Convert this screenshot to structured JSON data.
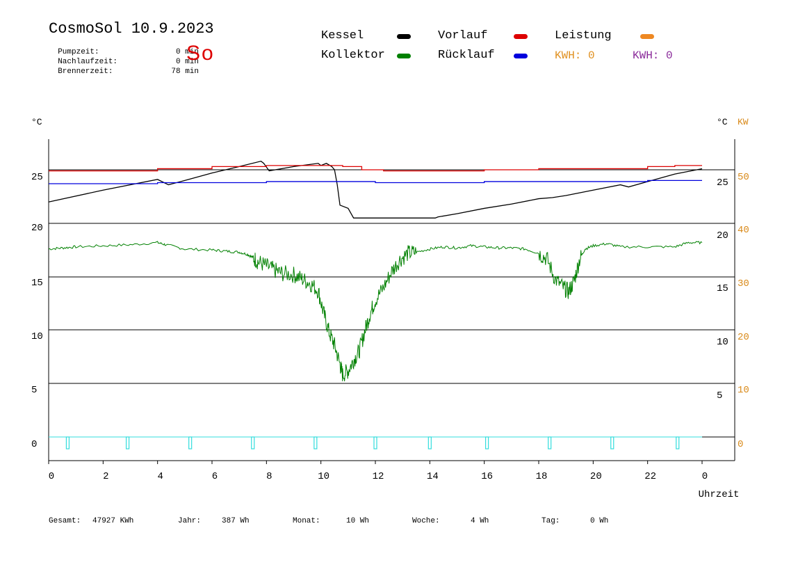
{
  "header": {
    "title": "CosmoSol 10.9.2023",
    "day": "So",
    "info": [
      {
        "label": "Pumpzeit:",
        "value": "0 min"
      },
      {
        "label": "Nachlaufzeit:",
        "value": "0 min"
      },
      {
        "label": "Brennerzeit:",
        "value": "78 min"
      }
    ]
  },
  "legend": {
    "kessel": "Kessel",
    "vorlauf": "Vorlauf",
    "leistung": "Leistung",
    "kollektor": "Kollektor",
    "ruecklauf": "Rücklauf",
    "kwh_1": "KWH: 0",
    "kwh_2": "KWH: 0"
  },
  "colors": {
    "kessel": "#000000",
    "vorlauf": "#dd0000",
    "leistung": "#ee8822",
    "kollektor": "#008000",
    "ruecklauf": "#0000dd",
    "pump": "#33dddd"
  },
  "units": {
    "left": "°C",
    "right": "°C",
    "kw": "KW"
  },
  "footer": {
    "gesamt_label": "Gesamt:",
    "gesamt_value": "47927 KWh",
    "jahr_label": "Jahr:",
    "jahr_value": "387 Wh",
    "monat_label": "Monat:",
    "monat_value": "10 Wh",
    "woche_label": "Woche:",
    "woche_value": "4 Wh",
    "tag_label": "Tag:",
    "tag_value": "0 Wh"
  },
  "chart_data": {
    "type": "line",
    "xlabel": "Uhrzeit",
    "x_ticks": [
      "0",
      "2",
      "4",
      "6",
      "8",
      "10",
      "12",
      "14",
      "16",
      "18",
      "20",
      "22",
      "0"
    ],
    "xlim": [
      0,
      24
    ],
    "upper_panel": {
      "left_ticks": [
        "25",
        "20"
      ],
      "right_ticks": [
        "25",
        "20"
      ],
      "series": [
        {
          "name": "Kessel",
          "color": "#000000",
          "x": [
            0,
            2,
            4,
            4.4,
            5,
            6,
            7,
            7.8,
            7.9,
            8.1,
            9,
            9.9,
            10.0,
            10.2,
            10.4,
            10.5,
            10.6,
            10.7,
            11.0,
            11.2,
            12,
            13,
            14.2,
            14.3,
            15,
            16,
            17,
            18,
            18.5,
            19,
            20,
            21,
            21.3,
            22,
            23,
            24
          ],
          "y": [
            22.0,
            23.1,
            24.1,
            23.6,
            24.0,
            24.7,
            25.3,
            25.8,
            25.6,
            24.9,
            25.3,
            25.6,
            25.4,
            25.6,
            25.3,
            25.0,
            23.6,
            21.7,
            21.4,
            20.5,
            20.5,
            20.5,
            20.5,
            20.6,
            20.9,
            21.4,
            21.8,
            22.3,
            22.4,
            22.6,
            23.1,
            23.6,
            23.4,
            23.9,
            24.6,
            25.1
          ]
        },
        {
          "name": "Vorlauf",
          "color": "#dd0000",
          "x": [
            0,
            2,
            4,
            6,
            8,
            10,
            10.8,
            11.5,
            12.3,
            14,
            16,
            18,
            20,
            22,
            23,
            24
          ],
          "y": [
            24.9,
            24.9,
            25.1,
            25.3,
            25.4,
            25.4,
            25.3,
            25.0,
            24.9,
            24.9,
            25.0,
            25.1,
            25.1,
            25.3,
            25.4,
            25.4
          ]
        },
        {
          "name": "Rücklauf",
          "color": "#0000dd",
          "x": [
            0,
            2,
            4,
            6,
            8,
            10,
            12,
            14,
            16,
            18,
            20,
            22,
            24
          ],
          "y": [
            23.7,
            23.7,
            23.8,
            23.8,
            23.9,
            23.9,
            23.8,
            23.8,
            23.9,
            23.9,
            23.9,
            24.0,
            24.0
          ]
        }
      ]
    },
    "lower_panel": {
      "left_ticks": [
        "20",
        "15",
        "10",
        "5",
        "0"
      ],
      "right_ticks_black": [
        "20",
        "15",
        "10",
        "5"
      ],
      "right_ticks_kw": [
        "40",
        "30",
        "20",
        "10",
        "0"
      ],
      "series": [
        {
          "name": "Kollektor",
          "color": "#008000",
          "x": [
            0,
            0.5,
            1,
            2,
            3,
            4,
            4.3,
            5,
            6,
            6.5,
            7,
            7.3,
            7.5,
            7.7,
            8,
            8.3,
            8.6,
            9,
            9.3,
            9.6,
            9.9,
            10.1,
            10.3,
            10.5,
            10.7,
            10.8,
            11.0,
            11.2,
            11.4,
            11.6,
            11.8,
            12.0,
            12.3,
            12.6,
            12.9,
            13.2,
            13.5,
            14,
            14.5,
            15,
            15.5,
            16,
            16.5,
            17,
            17.5,
            18,
            18.3,
            18.6,
            18.9,
            19.1,
            19.3,
            19.5,
            19.7,
            20,
            20.5,
            21,
            22,
            23,
            23.5,
            24
          ],
          "y": [
            17.6,
            17.7,
            17.8,
            17.9,
            18.0,
            18.2,
            18.0,
            17.6,
            17.5,
            17.4,
            17.3,
            17.1,
            16.8,
            16.4,
            16.0,
            15.6,
            15.3,
            15.2,
            14.8,
            14.4,
            13.7,
            11.6,
            9.8,
            8.6,
            6.8,
            5.8,
            6.2,
            7.2,
            8.0,
            9.8,
            11.5,
            12.8,
            14.0,
            15.5,
            16.6,
            17.2,
            17.3,
            17.6,
            17.8,
            17.7,
            17.9,
            17.8,
            17.7,
            17.7,
            17.6,
            17.2,
            16.7,
            14.8,
            14.0,
            13.6,
            14.6,
            16.6,
            17.6,
            17.9,
            18.1,
            17.8,
            17.8,
            17.8,
            18.2,
            18.2
          ]
        }
      ],
      "pump_pulse_hours": [
        0.7,
        2.9,
        5.2,
        7.5,
        9.8,
        12.0,
        14.0,
        16.1,
        18.4,
        20.7,
        23.1
      ],
      "pump_baseline": 0
    }
  }
}
